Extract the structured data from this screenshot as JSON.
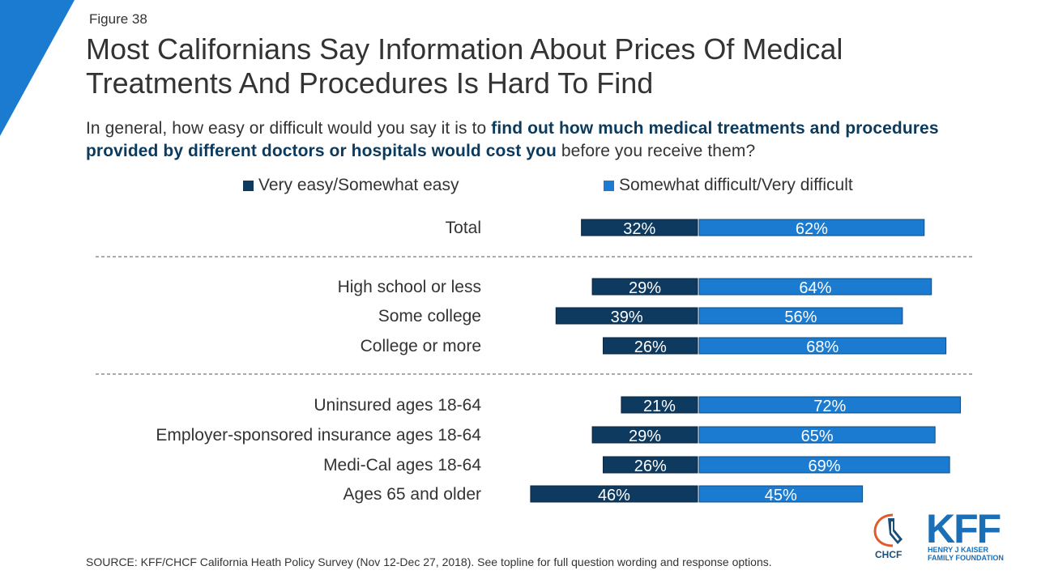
{
  "figure_label": "Figure 38",
  "title": "Most Californians Say Information About Prices Of Medical Treatments And Procedures Is Hard To Find",
  "subtitle": {
    "part1": "In general, how easy or difficult would you say it is to ",
    "emphasis": "find out how much medical treatments and procedures provided by different doctors or hospitals would cost you",
    "part2": " before you receive them?"
  },
  "colors": {
    "easy": "#0f3a5f",
    "difficult": "#1a7bd0",
    "accent": "#1a7bd0"
  },
  "legend": {
    "easy_label": "Very easy/Somewhat easy",
    "difficult_label": "Somewhat difficult/Very difficult"
  },
  "chart_data": {
    "type": "bar",
    "orientation": "horizontal-diverging",
    "categories": [
      "Total",
      "High school or less",
      "Some college",
      "College or more",
      "Uninsured ages 18-64",
      "Employer-sponsored insurance ages 18-64",
      "Medi-Cal ages 18-64",
      "Ages 65 and older"
    ],
    "groups": [
      [
        0
      ],
      [
        1,
        2,
        3
      ],
      [
        4,
        5,
        6,
        7
      ]
    ],
    "series": [
      {
        "name": "Very easy/Somewhat easy",
        "values": [
          32,
          29,
          39,
          26,
          21,
          29,
          26,
          46
        ],
        "labels": [
          "32%",
          "29%",
          "39%",
          "26%",
          "21%",
          "29%",
          "26%",
          "46%"
        ]
      },
      {
        "name": "Somewhat difficult/Very difficult",
        "values": [
          62,
          64,
          56,
          68,
          72,
          65,
          69,
          45
        ],
        "labels": [
          "62%",
          "64%",
          "56%",
          "68%",
          "72%",
          "65%",
          "69%",
          "45%"
        ]
      }
    ],
    "unit": "%"
  },
  "source": "SOURCE: KFF/CHCF California Heath Policy Survey (Nov 12-Dec 27, 2018). See topline for full question wording and response options.",
  "logos": {
    "chcf": "CHCF",
    "kff": "KFF",
    "kff_sub": "HENRY J KAISER FAMILY FOUNDATION"
  }
}
